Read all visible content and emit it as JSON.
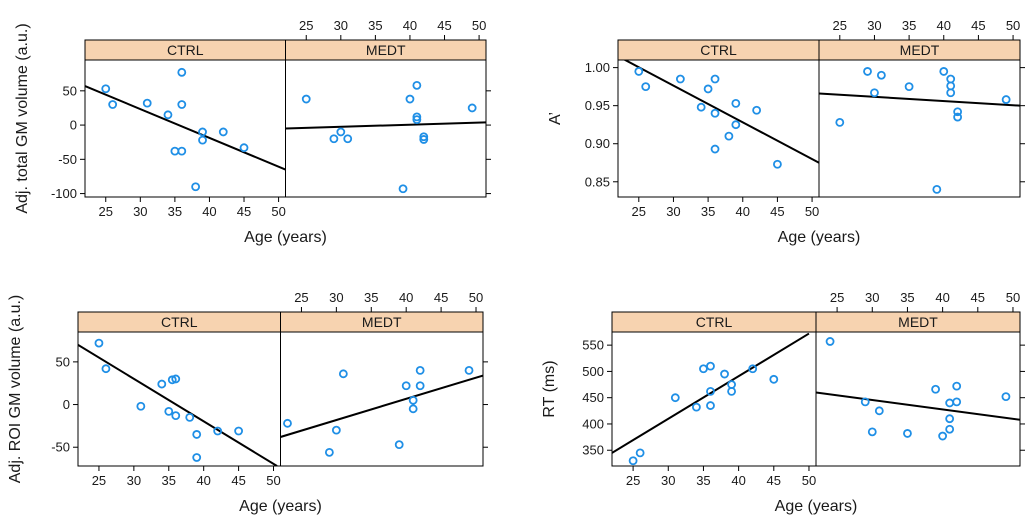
{
  "colors": {
    "strip": "#f7d3b0",
    "point": "#1f8fe6",
    "line": "#000000",
    "axis": "#000000"
  },
  "chart_data": [
    {
      "type": "scatter",
      "ylabel": "Adj. total GM volume (a.u.)",
      "xlabel": "Age (years)",
      "xlim": [
        22,
        51
      ],
      "ylim": [
        -105,
        95
      ],
      "yticks": [
        -100,
        -50,
        0,
        50
      ],
      "xticks": [
        25,
        30,
        35,
        40,
        45,
        50
      ],
      "panels": [
        {
          "strip": "CTRL",
          "points": [
            [
              25,
              53
            ],
            [
              26,
              30
            ],
            [
              31,
              32
            ],
            [
              34,
              15
            ],
            [
              35,
              -38
            ],
            [
              36,
              77
            ],
            [
              36,
              30
            ],
            [
              36,
              -38
            ],
            [
              38,
              -90
            ],
            [
              39,
              -10
            ],
            [
              39,
              -22
            ],
            [
              42,
              -10
            ],
            [
              45,
              -33
            ]
          ],
          "fit": [
            [
              22,
              57
            ],
            [
              51,
              -65
            ]
          ]
        },
        {
          "strip": "MEDT",
          "points": [
            [
              25,
              38
            ],
            [
              29,
              -20
            ],
            [
              30,
              -10
            ],
            [
              31,
              -20
            ],
            [
              39,
              -93
            ],
            [
              40,
              38
            ],
            [
              41,
              58
            ],
            [
              41,
              12
            ],
            [
              41,
              8
            ],
            [
              42,
              -17
            ],
            [
              42,
              -21
            ],
            [
              49,
              25
            ]
          ],
          "fit": [
            [
              22,
              -5
            ],
            [
              51,
              4
            ]
          ]
        }
      ]
    },
    {
      "type": "scatter",
      "ylabel": "A’",
      "xlabel": "Age (years)",
      "xlim": [
        22,
        51
      ],
      "ylim": [
        0.83,
        1.01
      ],
      "yticks": [
        0.85,
        0.9,
        0.95,
        1.0
      ],
      "ytick_labels": [
        "0.85",
        "0.90",
        "0.95",
        "1.00"
      ],
      "xticks": [
        25,
        30,
        35,
        40,
        45,
        50
      ],
      "panels": [
        {
          "strip": "CTRL",
          "points": [
            [
              25,
              0.995
            ],
            [
              26,
              0.975
            ],
            [
              31,
              0.985
            ],
            [
              34,
              0.948
            ],
            [
              35,
              0.972
            ],
            [
              36,
              0.985
            ],
            [
              36,
              0.94
            ],
            [
              36,
              0.893
            ],
            [
              38,
              0.91
            ],
            [
              39,
              0.953
            ],
            [
              39,
              0.925
            ],
            [
              42,
              0.944
            ],
            [
              45,
              0.873
            ]
          ],
          "fit": [
            [
              22,
              1.015
            ],
            [
              51,
              0.875
            ]
          ]
        },
        {
          "strip": "MEDT",
          "points": [
            [
              25,
              0.928
            ],
            [
              29,
              0.995
            ],
            [
              30,
              0.967
            ],
            [
              31,
              0.99
            ],
            [
              35,
              0.975
            ],
            [
              39,
              0.84
            ],
            [
              40,
              0.995
            ],
            [
              41,
              0.985
            ],
            [
              41,
              0.976
            ],
            [
              41,
              0.967
            ],
            [
              42,
              0.942
            ],
            [
              42,
              0.935
            ],
            [
              49,
              0.958
            ]
          ],
          "fit": [
            [
              22,
              0.966
            ],
            [
              51,
              0.95
            ]
          ]
        }
      ]
    },
    {
      "type": "scatter",
      "ylabel": "Adj. ROI GM volume (a.u.)",
      "xlabel": "Age (years)",
      "xlim": [
        22,
        51
      ],
      "ylim": [
        -72,
        85
      ],
      "yticks": [
        -50,
        0,
        50
      ],
      "xticks": [
        25,
        30,
        35,
        40,
        45,
        50
      ],
      "panels": [
        {
          "strip": "CTRL",
          "points": [
            [
              25,
              72
            ],
            [
              26,
              42
            ],
            [
              31,
              -2
            ],
            [
              34,
              24
            ],
            [
              35,
              -8
            ],
            [
              35.5,
              29
            ],
            [
              36,
              30
            ],
            [
              36,
              -13
            ],
            [
              38,
              -15
            ],
            [
              39,
              -35
            ],
            [
              39,
              -62
            ],
            [
              42,
              -31
            ],
            [
              45,
              -31
            ]
          ],
          "fit": [
            [
              22,
              70
            ],
            [
              50.5,
              -72
            ]
          ]
        },
        {
          "strip": "MEDT",
          "points": [
            [
              23,
              -22
            ],
            [
              29,
              -56
            ],
            [
              30,
              -30
            ],
            [
              31,
              36
            ],
            [
              39,
              -47
            ],
            [
              40,
              22
            ],
            [
              41,
              5
            ],
            [
              41,
              -5
            ],
            [
              42,
              40
            ],
            [
              42,
              22
            ],
            [
              49,
              40
            ]
          ],
          "fit": [
            [
              22,
              -38
            ],
            [
              51,
              34
            ]
          ]
        }
      ]
    },
    {
      "type": "scatter",
      "ylabel": "RT (ms)",
      "xlabel": "Age (years)",
      "xlim": [
        22,
        51
      ],
      "ylim": [
        320,
        575
      ],
      "yticks": [
        350,
        400,
        450,
        500,
        550
      ],
      "xticks": [
        25,
        30,
        35,
        40,
        45,
        50
      ],
      "panels": [
        {
          "strip": "CTRL",
          "points": [
            [
              25,
              330
            ],
            [
              26,
              345
            ],
            [
              31,
              450
            ],
            [
              34,
              432
            ],
            [
              35,
              505
            ],
            [
              36,
              510
            ],
            [
              36,
              462
            ],
            [
              36,
              435
            ],
            [
              38,
              495
            ],
            [
              39,
              475
            ],
            [
              39,
              462
            ],
            [
              42,
              505
            ],
            [
              45,
              485
            ]
          ],
          "fit": [
            [
              22,
              345
            ],
            [
              50,
              572
            ]
          ]
        },
        {
          "strip": "MEDT",
          "points": [
            [
              24,
              557
            ],
            [
              29,
              442
            ],
            [
              30,
              385
            ],
            [
              31,
              425
            ],
            [
              35,
              382
            ],
            [
              39,
              466
            ],
            [
              40,
              377
            ],
            [
              41,
              410
            ],
            [
              41,
              390
            ],
            [
              41,
              440
            ],
            [
              42,
              472
            ],
            [
              42,
              442
            ],
            [
              49,
              452
            ]
          ],
          "fit": [
            [
              22,
              460
            ],
            [
              51,
              408
            ]
          ]
        }
      ]
    }
  ]
}
